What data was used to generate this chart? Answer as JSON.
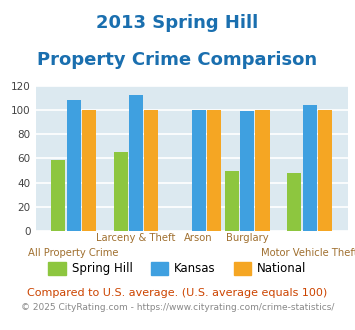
{
  "title_line1": "2013 Spring Hill",
  "title_line2": "Property Crime Comparison",
  "title_color": "#1a6faf",
  "groups": [
    "All Property Crime",
    "Larceny & Theft",
    "Arson",
    "Burglary",
    "Motor Vehicle Theft"
  ],
  "series": {
    "Spring Hill": [
      59,
      65,
      null,
      50,
      48
    ],
    "Kansas": [
      108,
      112,
      100,
      99,
      104
    ],
    "National": [
      100,
      100,
      100,
      100,
      100
    ]
  },
  "colors": {
    "Spring Hill": "#8dc63f",
    "Kansas": "#3fa0e0",
    "National": "#f5a623"
  },
  "ylim": [
    0,
    120
  ],
  "yticks": [
    0,
    20,
    40,
    60,
    80,
    100,
    120
  ],
  "background_color": "#dce9f0",
  "grid_color": "#ffffff",
  "xlabel_color": "#a07030",
  "footer_text": "© 2025 CityRating.com - https://www.cityrating.com/crime-statistics/",
  "compare_text": "Compared to U.S. average. (U.S. average equals 100)",
  "compare_color": "#cc4400",
  "footer_color": "#888888",
  "legend_labels": [
    "Spring Hill",
    "Kansas",
    "National"
  ]
}
